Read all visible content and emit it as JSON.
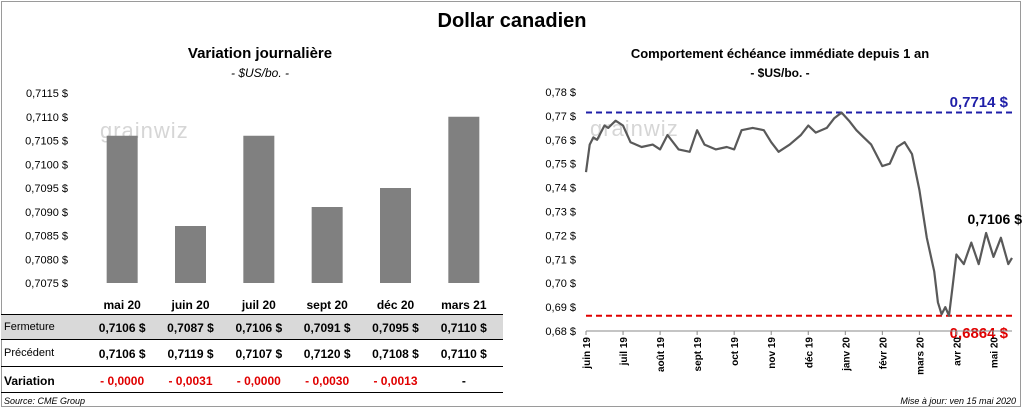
{
  "title": "Dollar canadien",
  "left": {
    "title": "Variation  journalière",
    "subtitle": "- $US/bo. -",
    "watermark": "grainwiz"
  },
  "right": {
    "title": "Comportement échéance immédiate depuis 1 an",
    "subtitle": "- $US/bo. -",
    "watermark": "grainwiz",
    "label_high": "0,7714 $",
    "label_low": "0,6864 $",
    "label_last": "0,7106 $"
  },
  "table": {
    "row_labels": [
      "Fermeture",
      "Précédent",
      "Variation"
    ],
    "fermeture": [
      "0,7106  $",
      "0,7087  $",
      "0,7106  $",
      "0,7091  $",
      "0,7095  $",
      "0,7110  $"
    ],
    "precedent": [
      "0,7106  $",
      "0,7119  $",
      "0,7107  $",
      "0,7120  $",
      "0,7108  $",
      "0,7110  $"
    ],
    "variation": [
      "- 0,0000",
      "- 0,0031",
      "- 0,0000",
      "- 0,0030",
      "- 0,0013",
      "-"
    ]
  },
  "footer": {
    "source": "Source: CME Group",
    "updated": "Mise à jour: ven 15 mai 2020"
  },
  "colors": {
    "bar": "#808080",
    "line": "#595959",
    "high": "#1f1fa8",
    "low": "#e00000",
    "band": "#d9d9d9"
  },
  "chart_data": [
    {
      "type": "bar",
      "categories": [
        "mai 20",
        "juin 20",
        "juil 20",
        "sept 20",
        "déc 20",
        "mars 21"
      ],
      "values": [
        0.7106,
        0.7087,
        0.7106,
        0.7091,
        0.7095,
        0.711
      ],
      "ylim": [
        0.7075,
        0.7115
      ],
      "yticks": [
        "0,7075 $",
        "0,7080 $",
        "0,7085 $",
        "0,7090 $",
        "0,7095 $",
        "0,7100 $",
        "0,7105 $",
        "0,7110 $",
        "0,7115 $"
      ],
      "grid": false
    },
    {
      "type": "line",
      "x_tick_labels": [
        "juin 19",
        "juil 19",
        "août 19",
        "sept 19",
        "oct 19",
        "nov 19",
        "déc 19",
        "janv 20",
        "févr 20",
        "mars 20",
        "avr 20",
        "mai 20"
      ],
      "yticks": [
        "0,68 $",
        "0,69 $",
        "0,70 $",
        "0,71 $",
        "0,72 $",
        "0,73 $",
        "0,74 $",
        "0,75 $",
        "0,76 $",
        "0,77 $",
        "0,78 $"
      ],
      "ylim": [
        0.68,
        0.78
      ],
      "reference_lines": [
        {
          "value": 0.7714,
          "color": "#1f1fa8",
          "style": "dashed"
        },
        {
          "value": 0.6864,
          "color": "#e00000",
          "style": "dashed"
        }
      ],
      "x_months": [
        0,
        0.1,
        0.2,
        0.3,
        0.4,
        0.5,
        0.6,
        0.8,
        1.0,
        1.2,
        1.5,
        1.8,
        2.0,
        2.2,
        2.5,
        2.8,
        3.0,
        3.2,
        3.5,
        3.8,
        4.0,
        4.2,
        4.5,
        4.8,
        5.0,
        5.2,
        5.5,
        5.8,
        6.0,
        6.2,
        6.5,
        6.7,
        6.9,
        7.1,
        7.3,
        7.5,
        7.7,
        8.0,
        8.2,
        8.4,
        8.6,
        8.8,
        9.0,
        9.2,
        9.4,
        9.5,
        9.6,
        9.7,
        9.8,
        9.9,
        10.0,
        10.2,
        10.4,
        10.6,
        10.8,
        11.0,
        11.2,
        11.4,
        11.5
      ],
      "values": [
        0.7465,
        0.758,
        0.761,
        0.76,
        0.763,
        0.766,
        0.765,
        0.768,
        0.766,
        0.759,
        0.757,
        0.758,
        0.756,
        0.762,
        0.756,
        0.755,
        0.764,
        0.758,
        0.756,
        0.757,
        0.756,
        0.764,
        0.765,
        0.764,
        0.759,
        0.755,
        0.758,
        0.762,
        0.766,
        0.763,
        0.765,
        0.769,
        0.7714,
        0.768,
        0.764,
        0.761,
        0.758,
        0.749,
        0.75,
        0.757,
        0.759,
        0.754,
        0.739,
        0.719,
        0.705,
        0.692,
        0.687,
        0.69,
        0.6864,
        0.699,
        0.712,
        0.708,
        0.717,
        0.708,
        0.721,
        0.711,
        0.719,
        0.708,
        0.7106
      ]
    }
  ]
}
